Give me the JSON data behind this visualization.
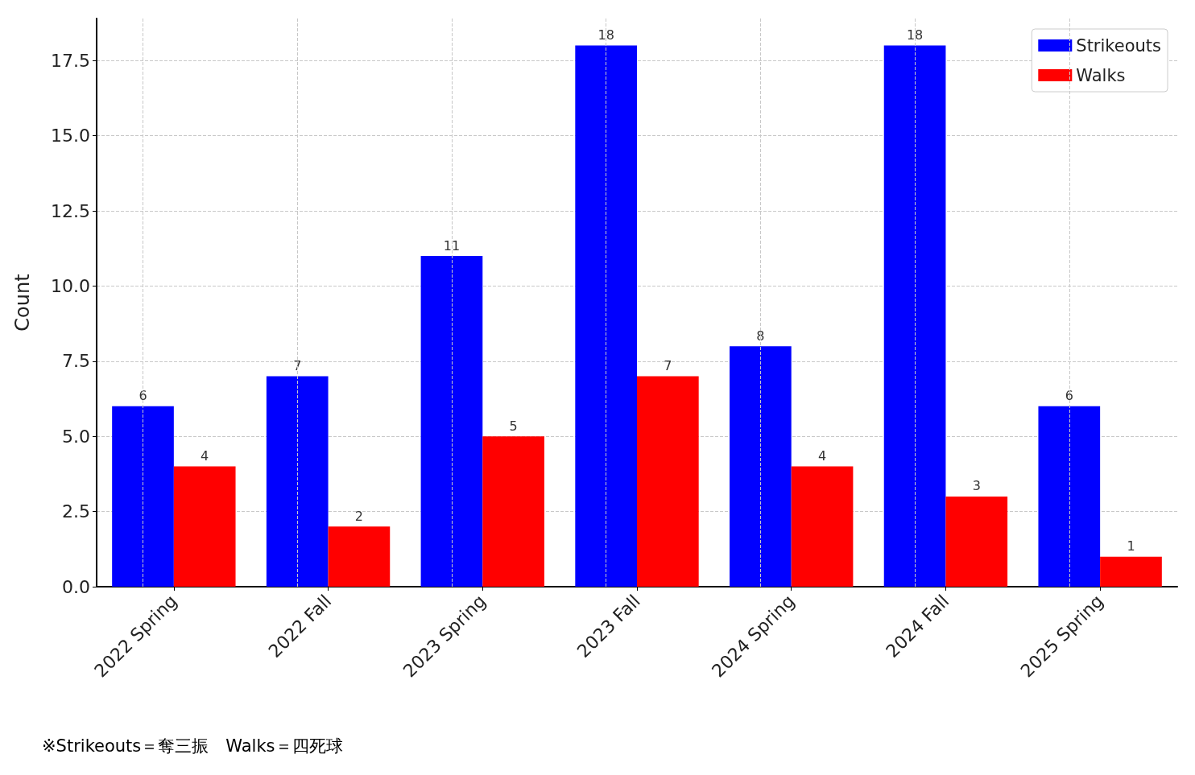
{
  "chart_data": {
    "type": "bar",
    "ylabel": "Count",
    "categories": [
      "2022 Spring",
      "2022 Fall",
      "2023 Spring",
      "2023 Fall",
      "2024 Spring",
      "2024 Fall",
      "2025 Spring"
    ],
    "series": [
      {
        "name": "Strikeouts",
        "color": "#0000ff",
        "values": [
          6,
          7,
          11,
          18,
          8,
          18,
          6
        ]
      },
      {
        "name": "Walks",
        "color": "#ff0000",
        "values": [
          4,
          2,
          5,
          7,
          4,
          3,
          1
        ]
      }
    ],
    "ylim": [
      0,
      18.9
    ],
    "yticks": [
      {
        "value": 0,
        "label": "0.0"
      },
      {
        "value": 2.5,
        "label": "2.5"
      },
      {
        "value": 5,
        "label": "5.0"
      },
      {
        "value": 7.5,
        "label": "7.5"
      },
      {
        "value": 10,
        "label": "10.0"
      },
      {
        "value": 12.5,
        "label": "12.5"
      },
      {
        "value": 15,
        "label": "15.0"
      },
      {
        "value": 17.5,
        "label": "17.5"
      }
    ],
    "grid": true,
    "legend": "top right",
    "data_labels": true,
    "annotations": [
      "※Strikeouts＝奪三振　Walks＝四死球"
    ]
  }
}
